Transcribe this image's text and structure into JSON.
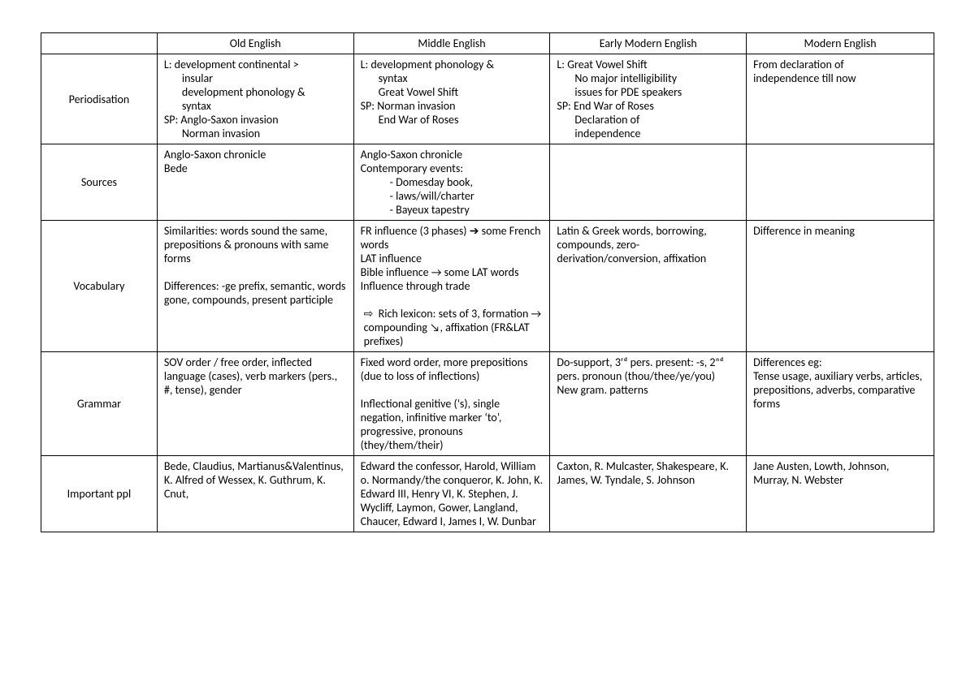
{
  "headers": {
    "corner": "",
    "col1": "Old English",
    "col2": "Middle English",
    "col3": "Early Modern English",
    "col4": "Modern English"
  },
  "rows": {
    "periodisation": {
      "label": "Periodisation",
      "oe": {
        "l1": "L: development continental >",
        "l2": "insular",
        "l3": "development phonology &",
        "l4": "syntax",
        "l5": "SP: Anglo-Saxon invasion",
        "l6": "Norman invasion"
      },
      "me": {
        "l1": "L: development phonology &",
        "l2": "syntax",
        "l3": "Great Vowel Shift",
        "l4": "SP: Norman invasion",
        "l5": "End War of Roses"
      },
      "eme": {
        "l1": "L: Great Vowel Shift",
        "l2": "No major intelligibility",
        "l3": "issues for PDE speakers",
        "l4": "SP: End War of Roses",
        "l5": "Declaration of",
        "l6": "independence"
      },
      "moe": {
        "l1": "From declaration of",
        "l2": "independence till now"
      }
    },
    "sources": {
      "label": "Sources",
      "oe": {
        "l1": "Anglo-Saxon chronicle",
        "l2": "Bede"
      },
      "me": {
        "l1": "Anglo-Saxon chronicle",
        "l2": "Contemporary events:",
        "d1": "Domesday book,",
        "d2": "laws/will/charter",
        "d3": "Bayeux tapestry"
      },
      "eme": {
        "l1": ""
      },
      "moe": {
        "l1": ""
      }
    },
    "vocabulary": {
      "label": "Vocabulary",
      "oe": {
        "l1": "Similarities: words sound the same, prepositions & pronouns with same forms",
        "l2": "Differences: -ge prefix, semantic, words gone, compounds, present participle"
      },
      "me": {
        "l1": "FR influence (3 phases) ➔ some French words",
        "l2": "LAT influence",
        "l3": "Bible influence → some LAT words",
        "l4": "Influence through trade",
        "a1": "Rich lexicon: sets of 3, formation → compounding ↘, affixation (FR&LAT prefixes)"
      },
      "eme": {
        "l1": "Latin & Greek words, borrowing, compounds, zero-derivation/conversion, affixation"
      },
      "moe": {
        "l1": "Difference in meaning"
      }
    },
    "grammar": {
      "label": "Grammar",
      "oe": {
        "l1": "SOV order / free order, inflected language (cases), verb markers (pers., #, tense), gender"
      },
      "me": {
        "l1": "Fixed word order, more prepositions (due to loss of inflections)",
        "l2": "Inflectional genitive (‘s), single negation, infinitive marker ‘to’, progressive, pronouns (they/them/their)"
      },
      "eme": {
        "l1": "Do-support, 3ʳᵈ pers. present: -s, 2ⁿᵈ pers. pronoun (thou/thee/ye/you)",
        "l2": "New gram. patterns"
      },
      "moe": {
        "l1": "Differences eg:",
        "l2": "Tense usage, auxiliary verbs, articles, prepositions, adverbs, comparative forms"
      }
    },
    "people": {
      "label": "Important ppl",
      "oe": {
        "l1": "Bede, Claudius, Martianus&Valentinus, K. Alfred of Wessex, K. Guthrum, K. Cnut,"
      },
      "me": {
        "l1": "Edward the confessor, Harold, William o. Normandy/the conqueror, K. John, K. Edward III, Henry VI, K. Stephen, J. Wycliff, Laymon, Gower, Langland, Chaucer, Edward I, James I, W. Dunbar"
      },
      "eme": {
        "l1": "Caxton, R. Mulcaster, Shakespeare, K. James, W. Tyndale, S. Johnson"
      },
      "moe": {
        "l1": "Jane Austen, Lowth, Johnson, Murray, N. Webster"
      }
    }
  }
}
